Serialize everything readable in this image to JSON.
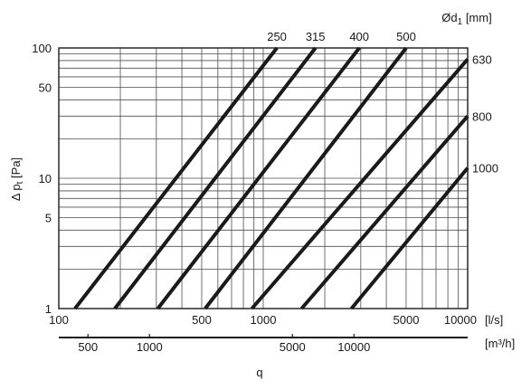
{
  "chart_data": {
    "type": "line",
    "title": "",
    "x_scale": "log",
    "y_scale": "log",
    "xlim": [
      100,
      10000
    ],
    "ylim": [
      1,
      100
    ],
    "x_ticks": [
      100,
      500,
      1000,
      5000,
      10000
    ],
    "x_tick_labels": [
      "100",
      "500",
      "1000",
      "5000",
      "10000"
    ],
    "x_unit": "[l/s]",
    "x2_ticks": [
      500,
      1000,
      5000,
      10000
    ],
    "x2_tick_labels": [
      "500",
      "1000",
      "5000",
      "10000"
    ],
    "x2_unit": "[m³/h]",
    "xlabel": "q",
    "y_ticks": [
      1,
      5,
      10,
      50,
      100
    ],
    "y_tick_labels": [
      "1",
      "5",
      "10",
      "50",
      "100"
    ],
    "ylabel_main": "Δ p",
    "ylabel_sub": "t",
    "ylabel_unit": " [Pa]",
    "legend_title_main": "Ød",
    "legend_title_sub": "1",
    "legend_title_unit": " [mm]",
    "grid": true,
    "series": [
      {
        "name": "250",
        "x": [
          120,
          1166
        ],
        "y": [
          1,
          100
        ]
      },
      {
        "name": "315",
        "x": [
          188,
          1800
        ],
        "y": [
          1,
          100
        ]
      },
      {
        "name": "400",
        "x": [
          305,
          2950
        ],
        "y": [
          1,
          100
        ]
      },
      {
        "name": "500",
        "x": [
          520,
          5000
        ],
        "y": [
          1,
          100
        ]
      },
      {
        "name": "630",
        "x": [
          880,
          10000
        ],
        "y": [
          1,
          82
        ]
      },
      {
        "name": "800",
        "x": [
          1540,
          10000
        ],
        "y": [
          1,
          30
        ]
      },
      {
        "name": "1000",
        "x": [
          2700,
          10000
        ],
        "y": [
          1,
          12
        ]
      }
    ]
  }
}
